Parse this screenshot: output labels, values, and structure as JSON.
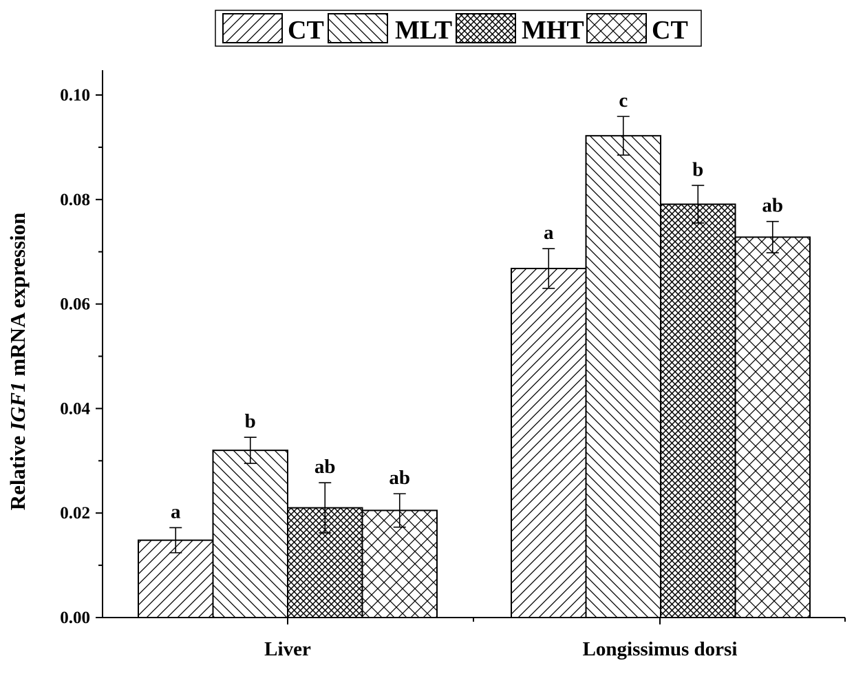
{
  "chart_data": {
    "type": "bar",
    "title": "",
    "xlabel": "",
    "ylabel": {
      "prefix": "Relative ",
      "gene": "IGF1",
      "suffix": " mRNA expression"
    },
    "ylim": [
      0,
      0.105
    ],
    "yticks": [
      0.0,
      0.02,
      0.04,
      0.06,
      0.08,
      0.1
    ],
    "ytick_labels": [
      "0.00",
      "0.02",
      "0.04",
      "0.06",
      "0.08",
      "0.10"
    ],
    "categories": [
      "Liver",
      "Longissimus dorsi"
    ],
    "legend_position": "top-center",
    "series": [
      {
        "name": "CT",
        "pattern": "diag-fwd",
        "values": [
          0.0148,
          0.0668
        ],
        "errors": [
          0.0024,
          0.0038
        ],
        "letters": [
          "a",
          "a"
        ]
      },
      {
        "name": "MLT",
        "pattern": "diag-back",
        "values": [
          0.032,
          0.0922
        ],
        "errors": [
          0.0025,
          0.0037
        ],
        "letters": [
          "b",
          "c"
        ]
      },
      {
        "name": "MHT",
        "pattern": "dense-cross",
        "values": [
          0.021,
          0.0791
        ],
        "errors": [
          0.0048,
          0.0036
        ],
        "letters": [
          "ab",
          "b"
        ]
      },
      {
        "name": "CT",
        "pattern": "open-cross",
        "values": [
          0.0205,
          0.0728
        ],
        "errors": [
          0.0032,
          0.003
        ],
        "letters": [
          "ab",
          "ab"
        ]
      }
    ]
  }
}
